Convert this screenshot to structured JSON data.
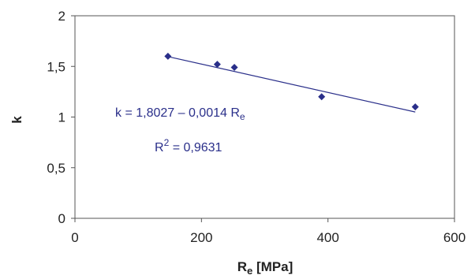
{
  "chart_data": {
    "type": "scatter",
    "title": "",
    "xlabel": "R",
    "xlabel_sub": "e",
    "xlabel_unit": " [MPa]",
    "ylabel": "k",
    "xlim": [
      0,
      600
    ],
    "ylim": [
      0,
      2
    ],
    "x_ticks": [
      "0",
      "200",
      "400",
      "600"
    ],
    "y_ticks": [
      "0",
      "0,5",
      "1",
      "1,5",
      "2"
    ],
    "grid": false,
    "legend": "none",
    "series": [
      {
        "points": [
          {
            "x": 147,
            "y": 1.6
          },
          {
            "x": 225,
            "y": 1.52
          },
          {
            "x": 252,
            "y": 1.49
          },
          {
            "x": 390,
            "y": 1.2
          },
          {
            "x": 538,
            "y": 1.1
          }
        ],
        "color": "#2a2f8a",
        "marker": "diamond"
      }
    ],
    "trendline": {
      "type": "linear",
      "intercept": 1.8027,
      "slope": -0.0014,
      "x_range": [
        147,
        538
      ],
      "color": "#2a2f8a"
    },
    "annotations": {
      "equation_main": "k = 1,8027 – 0,0014 R",
      "equation_sub": "e",
      "r2_prefix": "R",
      "r2_sup": "2",
      "r2_value": " = 0,9631"
    },
    "annotation_color": "#2a2f8a"
  }
}
